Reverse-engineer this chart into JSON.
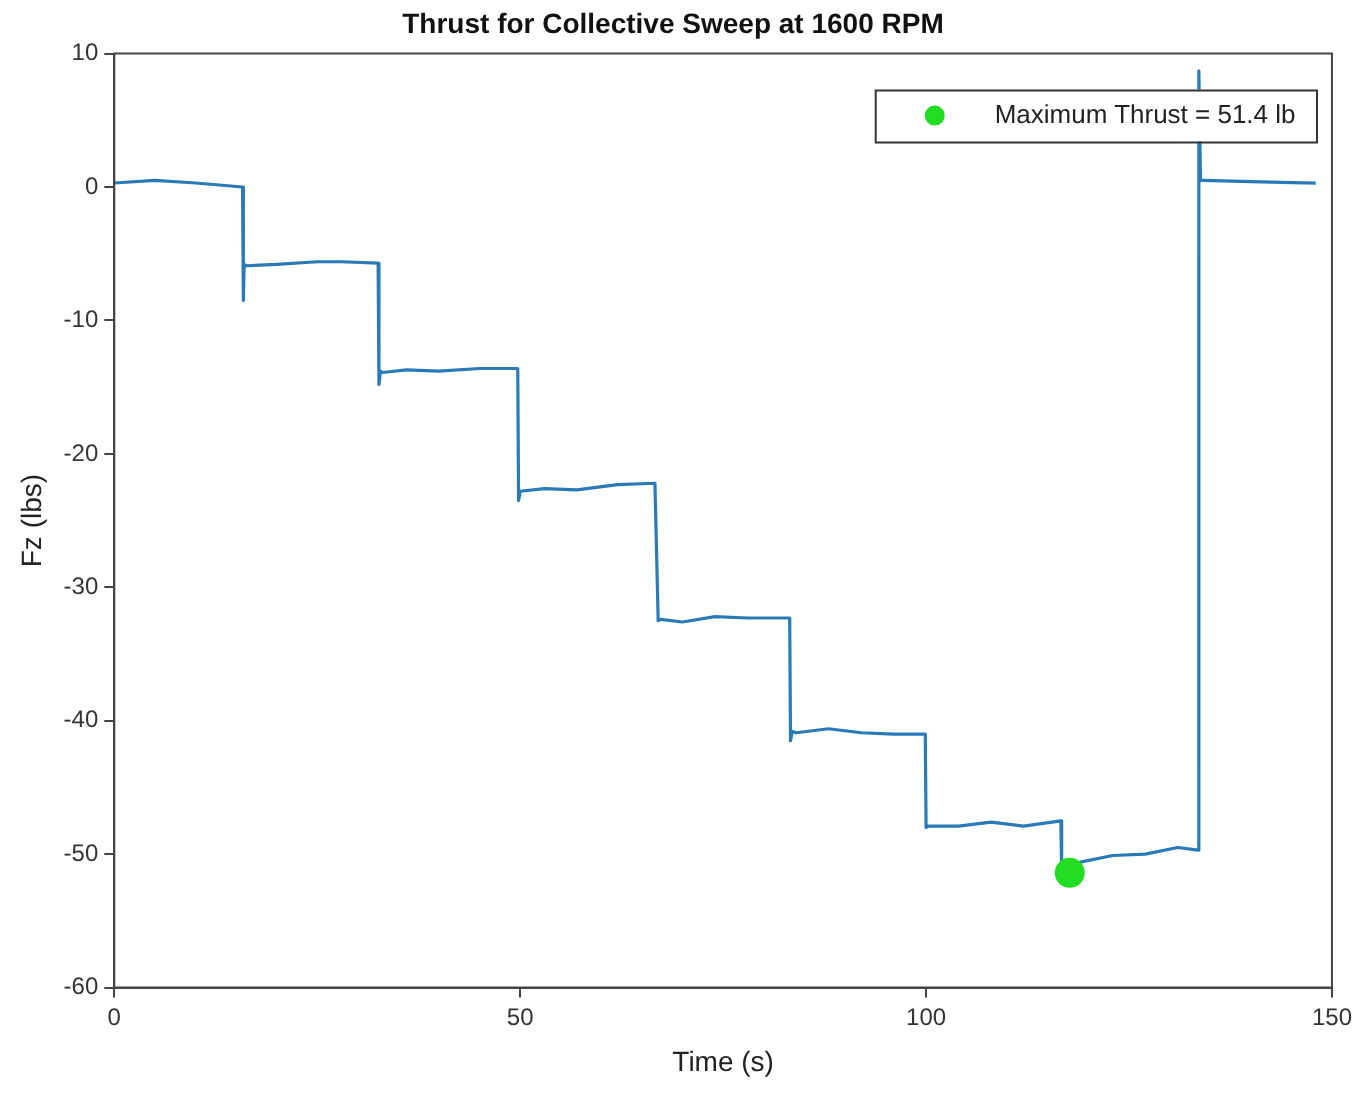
{
  "chart_data": {
    "type": "line",
    "title": "Thrust for Collective Sweep at 1600 RPM",
    "xlabel": "Time (s)",
    "ylabel": "Fz (lbs)",
    "xlim": [
      0,
      150
    ],
    "xticks": [
      0,
      50,
      100,
      150
    ],
    "ylim": [
      -60,
      10
    ],
    "yticks": [
      -60,
      -50,
      -40,
      -30,
      -20,
      -10,
      0,
      10
    ],
    "grid": false,
    "legend": "top right",
    "marker": "none",
    "line_style": "solid",
    "series": [
      {
        "color": "#2a7ab8",
        "x": [
          0,
          5,
          10,
          15.8,
          15.9,
          16,
          16.3,
          20,
          25,
          28,
          32.5,
          32.6,
          32.8,
          33,
          36,
          40,
          45,
          49.7,
          49.8,
          50,
          50.2,
          53,
          57,
          62,
          66.6,
          66.7,
          67,
          67.3,
          70,
          74,
          78,
          83.2,
          83.3,
          83.5,
          84,
          88,
          92,
          96,
          99.9,
          100,
          100.3,
          104,
          108,
          112,
          116.6,
          116.7,
          117.7,
          119,
          123,
          127,
          131,
          133.5,
          133.6,
          133.8,
          134.2,
          140,
          148
        ],
        "values": [
          0.3,
          0.5,
          0.3,
          0,
          -8.5,
          -5.8,
          -5.9,
          -5.8,
          -5.6,
          -5.6,
          -5.7,
          -14.8,
          -13.8,
          -13.9,
          -13.7,
          -13.8,
          -13.6,
          -13.6,
          -23.5,
          -22.8,
          -22.8,
          -22.6,
          -22.7,
          -22.3,
          -22.2,
          -22.2,
          -32.5,
          -32.4,
          -32.6,
          -32.2,
          -32.3,
          -32.3,
          -41.5,
          -40.8,
          -40.9,
          -40.6,
          -40.9,
          -41,
          -41,
          -48,
          -47.9,
          -47.9,
          -47.6,
          -47.9,
          -47.5,
          -51.2,
          -51.4,
          -50.6,
          -50.1,
          -50,
          -49.5,
          -49.7,
          8.7,
          0.5,
          0.5,
          0.4,
          0.3
        ]
      },
      {
        "type": "scatter",
        "name": "Maximum Thrust = 51.4 lb",
        "color": "#22dd22",
        "marker": "circle",
        "x": [
          117.7
        ],
        "values": [
          -51.4
        ]
      }
    ]
  }
}
